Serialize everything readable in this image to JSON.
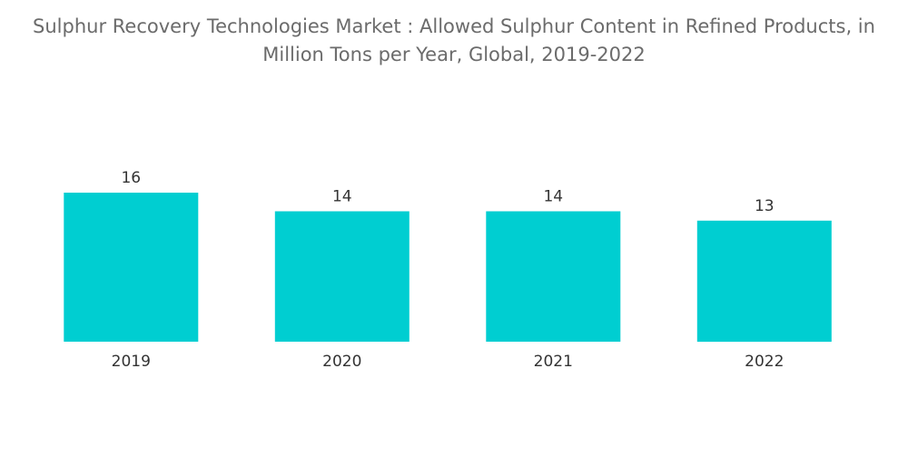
{
  "chart_data": {
    "type": "bar",
    "title_lines": [
      "Sulphur Recovery Technologies Market : Allowed Sulphur Content in Refined Products, in",
      "Million Tons per Year, Global, 2019-2022"
    ],
    "categories": [
      "2019",
      "2020",
      "2021",
      "2022"
    ],
    "values": [
      16,
      14,
      14,
      13
    ],
    "data_labels": [
      "16",
      "14",
      "14",
      "13"
    ],
    "xlabel": "",
    "ylabel": "",
    "ylim": [
      0,
      16
    ],
    "grid": false,
    "legend": "none",
    "bar_color": "#00CED1"
  }
}
